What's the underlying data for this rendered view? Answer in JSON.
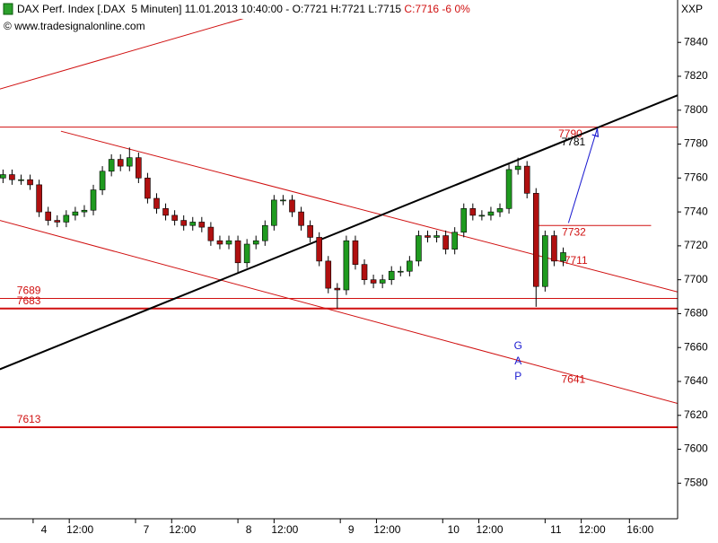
{
  "chart_data": {
    "type": "candlestick",
    "title": "DAX Perf. Index [.DAX  5 Minuten] 11.01.2013 10:40:00 - O:7721 H:7721 L:7715",
    "title_change": "C:7716 -6 0%",
    "source": "© www.tradesignalonline.com",
    "symbol": "XXP",
    "gap_label": "GAP",
    "up_color": "#1f9a1f",
    "down_color": "#b01010",
    "x": [
      -2.5,
      -1.75,
      -1,
      -0.25,
      0.5,
      1.25,
      2,
      2.75,
      3.5,
      4.25,
      5,
      5.75,
      6.5,
      7.25,
      8,
      8.75,
      9.5,
      10.25,
      11,
      11.75,
      12.5,
      13.25,
      14,
      14.75,
      15.5,
      16.25,
      17,
      17.75,
      18.5,
      19.25,
      20,
      20.75,
      21.5,
      22.25,
      23,
      23.75,
      24.5,
      25.25,
      26,
      26.75,
      27.5,
      28.25,
      29,
      29.75,
      30.5,
      31.25,
      32,
      32.75,
      33.5,
      34.25,
      35,
      35.75,
      36.5,
      37.25,
      38,
      38.75,
      39.5,
      40.25,
      41,
      41.75,
      42.5,
      43.25,
      44
    ],
    "open": [
      7760,
      7762,
      7759,
      7759,
      7756,
      7740,
      7735,
      7734,
      7738,
      7740,
      7741,
      7753,
      7764,
      7771,
      7767,
      7772,
      7760,
      7748,
      7742,
      7738,
      7735,
      7732,
      7734,
      7731,
      7723,
      7721,
      7723,
      7710,
      7721,
      7723,
      7732,
      7747,
      7747,
      7740,
      7732,
      7725,
      7711,
      7695,
      7694,
      7723,
      7709,
      7700,
      7698,
      7700,
      7705,
      7705,
      7711,
      7726,
      7725,
      7726,
      7718,
      7728,
      7742,
      7738,
      7738,
      7740,
      7742,
      7765,
      7767,
      7751,
      7696,
      7726,
      7711
    ],
    "high": [
      7765,
      7765,
      7762,
      7762,
      7759,
      7743,
      7738,
      7741,
      7743,
      7744,
      7756,
      7767,
      7774,
      7774,
      7778,
      7775,
      7763,
      7751,
      7745,
      7741,
      7738,
      7737,
      7737,
      7734,
      7726,
      7726,
      7726,
      7724,
      7726,
      7735,
      7750,
      7750,
      7750,
      7743,
      7735,
      7728,
      7714,
      7698,
      7726,
      7726,
      7712,
      7703,
      7703,
      7708,
      7708,
      7714,
      7729,
      7729,
      7729,
      7729,
      7731,
      7745,
      7745,
      7741,
      7743,
      7745,
      7768,
      7772,
      7770,
      7754,
      7729,
      7729,
      7719
    ],
    "low": [
      7757,
      7756,
      7756,
      7753,
      7737,
      7732,
      7731,
      7731,
      7735,
      7737,
      7738,
      7750,
      7761,
      7764,
      7764,
      7757,
      7745,
      7739,
      7735,
      7732,
      7729,
      7729,
      7728,
      7720,
      7718,
      7718,
      7704,
      7707,
      7718,
      7720,
      7729,
      7744,
      7737,
      7729,
      7722,
      7708,
      7692,
      7683,
      7691,
      7706,
      7697,
      7695,
      7695,
      7697,
      7702,
      7702,
      7708,
      7722,
      7722,
      7715,
      7715,
      7725,
      7735,
      7735,
      7735,
      7737,
      7739,
      7762,
      7748,
      7684,
      7693,
      7708,
      7708
    ],
    "close": [
      7762,
      7759,
      7759,
      7756,
      7740,
      7735,
      7734,
      7738,
      7740,
      7741,
      7753,
      7764,
      7771,
      7767,
      7772,
      7760,
      7748,
      7742,
      7738,
      7735,
      7732,
      7734,
      7731,
      7723,
      7721,
      7723,
      7710,
      7721,
      7723,
      7732,
      7747,
      7747,
      7740,
      7732,
      7725,
      7711,
      7695,
      7694,
      7723,
      7709,
      7700,
      7698,
      7700,
      7705,
      7705,
      7711,
      7726,
      7725,
      7726,
      7718,
      7728,
      7742,
      7738,
      7738,
      7740,
      7742,
      7765,
      7767,
      7751,
      7696,
      7726,
      7711,
      7716
    ],
    "xlim": [
      -2.75,
      53.5
    ],
    "xticks": [
      {
        "value": 0,
        "label": "4"
      },
      {
        "value": 3,
        "label": "12:00"
      },
      {
        "value": 8.5,
        "label": "7"
      },
      {
        "value": 11.5,
        "label": "12:00"
      },
      {
        "value": 17,
        "label": "8"
      },
      {
        "value": 20,
        "label": "12:00"
      },
      {
        "value": 25.5,
        "label": "9"
      },
      {
        "value": 28.5,
        "label": "12:00"
      },
      {
        "value": 34,
        "label": "10"
      },
      {
        "value": 37,
        "label": "12:00"
      },
      {
        "value": 42.5,
        "label": "11"
      },
      {
        "value": 45.5,
        "label": "12:00"
      },
      {
        "value": 49.5,
        "label": "16:00"
      }
    ],
    "ylim": [
      7559,
      7865
    ],
    "yticks": [
      7580,
      7600,
      7620,
      7640,
      7660,
      7680,
      7700,
      7720,
      7740,
      7760,
      7780,
      7800,
      7820,
      7840
    ],
    "levels": [
      {
        "value": 7790,
        "color": "#d01010",
        "width": 1,
        "label_t": 43.6,
        "label_below": true
      },
      {
        "value": 7689,
        "color": "#d01010",
        "width": 1,
        "label_t": -1.35,
        "label_below": false
      },
      {
        "value": 7683,
        "color": "#d01010",
        "width": 2,
        "label_t": -1.35,
        "label_below": false
      },
      {
        "value": 7613,
        "color": "#d01010",
        "width": 2,
        "label_t": -1.35,
        "label_below": false
      },
      {
        "value": 7732,
        "color": "#d01010",
        "width": 1,
        "from_t": 41.98,
        "to_t": 51.3,
        "label_t": 43.9,
        "label_below": true
      }
    ],
    "price_labels": [
      {
        "value": 7781,
        "t": 43.85,
        "color": "#000000"
      },
      {
        "value": 7711,
        "t": 44.1,
        "color": "#d01010"
      },
      {
        "value": 7641,
        "t": 43.85,
        "color": "#d01010"
      }
    ],
    "lines": [
      {
        "from": [
          -2.76,
          7812.5
        ],
        "to": [
          18.86,
          7857
        ],
        "color": "#d01010",
        "width": 1
      },
      {
        "from": [
          2.31,
          7787.6
        ],
        "to": [
          53.5,
          7692.8
        ],
        "color": "#d01010",
        "width": 1
      },
      {
        "from": [
          -2.76,
          7735
        ],
        "to": [
          53.5,
          7627
        ],
        "color": "#d01010",
        "width": 1
      },
      {
        "from": [
          -2.76,
          7647.2
        ],
        "to": [
          53.5,
          7808.8
        ],
        "color": "#000000",
        "width": 2
      }
    ],
    "arrow": {
      "from": [
        44.44,
        7733.5
      ],
      "to": [
        46.83,
        7789.2
      ],
      "color": "#1a1ad0"
    },
    "gap_t": 40.2,
    "gap_value": 7650
  }
}
